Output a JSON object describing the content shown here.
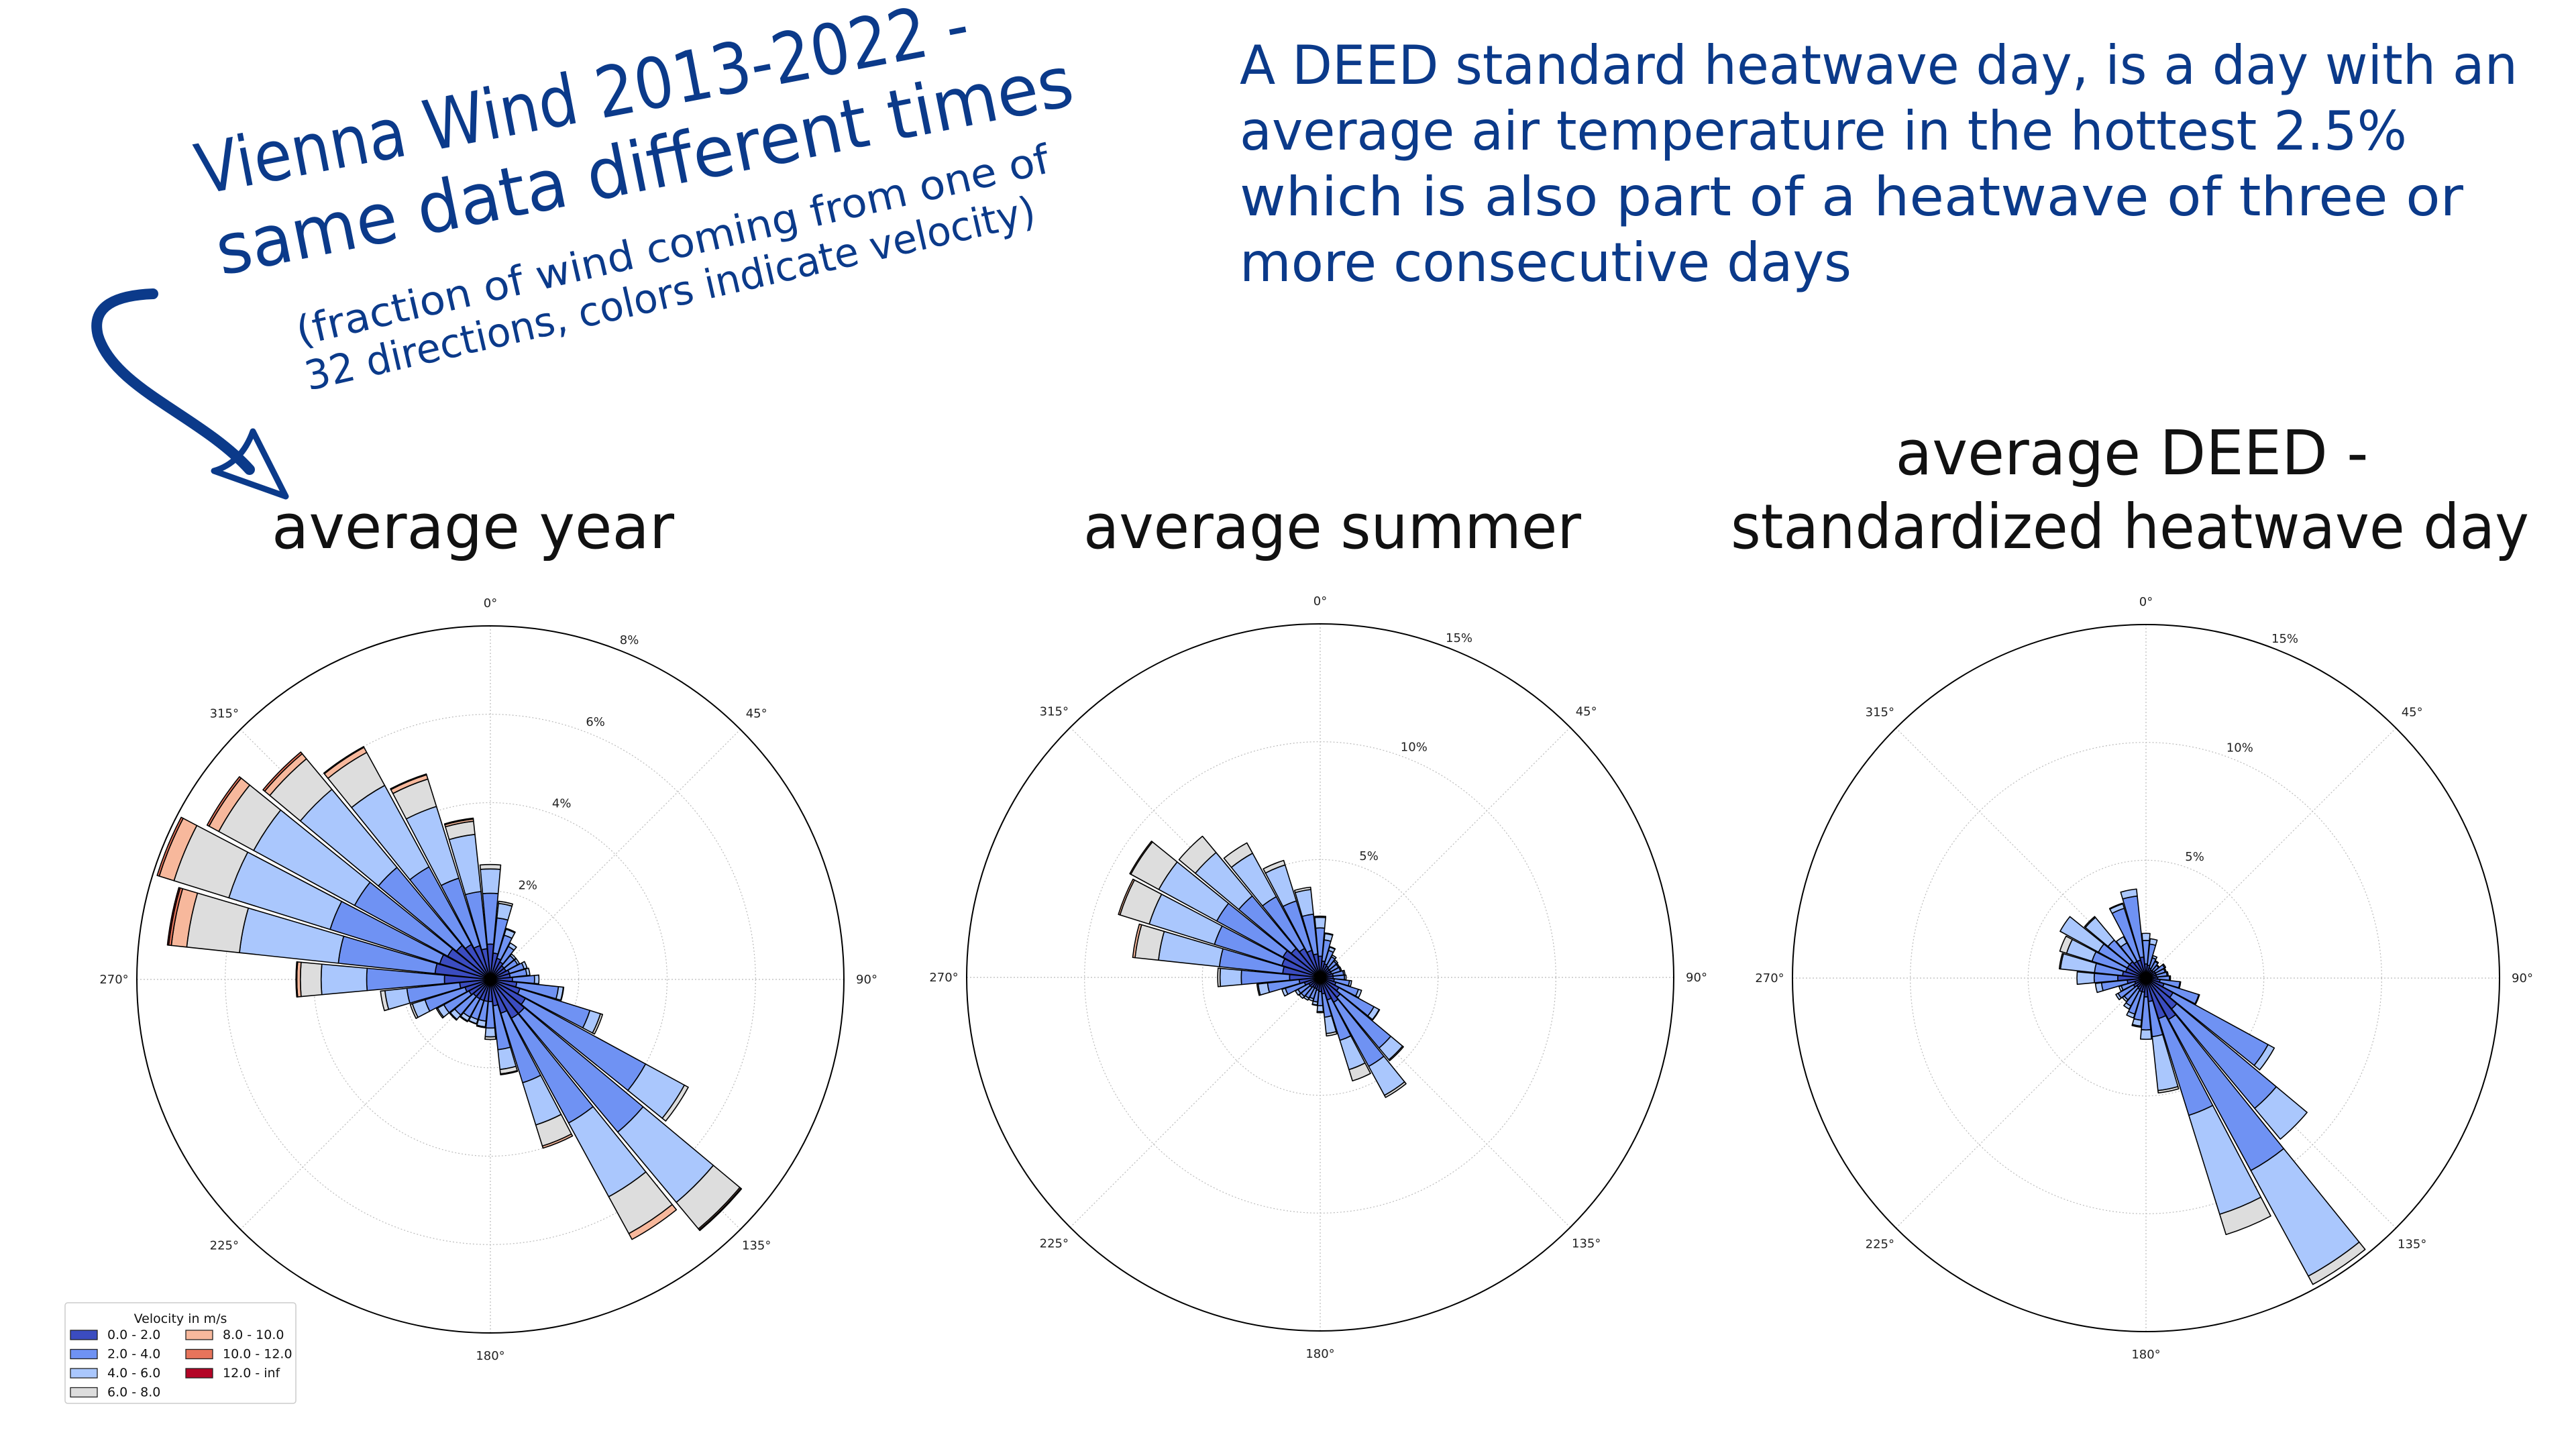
{
  "headline": {
    "lines": [
      "Vienna Wind 2013-2022 -",
      "same data different times"
    ],
    "sub_lines": [
      "(fraction of wind coming from one of",
      "32 directions, colors indicate velocity)"
    ]
  },
  "definition": {
    "lines": [
      "A DEED standard heatwave day, is a day with an",
      "average air temperature in the hottest 2.5%",
      "which is also part of a heatwave of three or",
      "more consecutive days"
    ]
  },
  "colors": {
    "text_blue": "#0b3a8a",
    "bins": [
      "#3b4cc0",
      "#6f92f3",
      "#aac7fd",
      "#dddddd",
      "#f7b89c",
      "#e7745b",
      "#b40426"
    ]
  },
  "legend": {
    "title": "Velocity in m/s",
    "labels": [
      "0.0 - 2.0",
      "2.0 - 4.0",
      "4.0 - 6.0",
      "6.0 - 8.0",
      "8.0 - 10.0",
      "10.0 - 12.0",
      "12.0 - inf"
    ],
    "placement": "lower-left"
  },
  "chart_data": [
    {
      "type": "windrose",
      "title_lines": [
        "average year"
      ],
      "angle_labels": [
        "0°",
        "45°",
        "90°",
        "135°",
        "180°",
        "225°",
        "270°",
        "315°"
      ],
      "radial_ticks": [
        2,
        4,
        6,
        8
      ],
      "radial_labels": [
        "2%",
        "4%",
        "6%",
        "8%"
      ],
      "rmax": 8,
      "directions_deg": [
        0,
        11.25,
        22.5,
        33.75,
        45,
        56.25,
        67.5,
        78.75,
        90,
        101.25,
        112.5,
        123.75,
        135,
        146.25,
        157.5,
        168.75,
        180,
        191.25,
        202.5,
        213.75,
        225,
        236.25,
        247.5,
        258.75,
        270,
        281.25,
        292.5,
        303.75,
        315,
        326.25,
        337.5,
        348.75
      ],
      "values_pct": [
        [
          0.8,
          1.15,
          0.55,
          0.1,
          0,
          0,
          0
        ],
        [
          0.6,
          0.8,
          0.33,
          0.05,
          0,
          0,
          0
        ],
        [
          0.5,
          0.55,
          0.14,
          0.02,
          0,
          0,
          0
        ],
        [
          0.45,
          0.4,
          0.09,
          0,
          0,
          0,
          0
        ],
        [
          0.4,
          0.3,
          0.05,
          0,
          0,
          0,
          0
        ],
        [
          0.4,
          0.3,
          0.05,
          0,
          0,
          0,
          0
        ],
        [
          0.45,
          0.35,
          0.07,
          0,
          0,
          0,
          0
        ],
        [
          0.45,
          0.38,
          0.07,
          0,
          0,
          0,
          0
        ],
        [
          0.5,
          0.5,
          0.1,
          0,
          0,
          0,
          0
        ],
        [
          0.6,
          0.95,
          0.11,
          0.01,
          0,
          0,
          0
        ],
        [
          0.7,
          1.66,
          0.25,
          0.05,
          0,
          0,
          0
        ],
        [
          0.9,
          3.1,
          1.0,
          0.1,
          0,
          0,
          0
        ],
        [
          1.0,
          3.5,
          2.07,
          0.78,
          0.03,
          0.02,
          0
        ],
        [
          1.0,
          2.7,
          1.9,
          0.95,
          0.15,
          0,
          0
        ],
        [
          0.8,
          1.65,
          1.0,
          0.5,
          0.05,
          0,
          0
        ],
        [
          0.6,
          1.0,
          0.45,
          0.1,
          0.02,
          0,
          0
        ],
        [
          0.5,
          0.6,
          0.2,
          0.06,
          0,
          0,
          0
        ],
        [
          0.5,
          0.45,
          0.13,
          0.02,
          0,
          0,
          0
        ],
        [
          0.5,
          0.45,
          0.1,
          0.01,
          0,
          0,
          0
        ],
        [
          0.5,
          0.47,
          0.1,
          0.02,
          0,
          0,
          0
        ],
        [
          0.5,
          0.55,
          0.13,
          0.02,
          0,
          0,
          0
        ],
        [
          0.55,
          0.65,
          0.16,
          0.03,
          0,
          0,
          0
        ],
        [
          0.6,
          0.95,
          0.3,
          0.05,
          0,
          0,
          0
        ],
        [
          0.7,
          1.2,
          0.5,
          0.1,
          0,
          0,
          0
        ],
        [
          1.04,
          1.76,
          1.03,
          0.47,
          0.08,
          0.02,
          0
        ],
        [
          1.26,
          2.2,
          2.25,
          1.2,
          0.35,
          0.06,
          0.03
        ],
        [
          1.2,
          2.6,
          2.4,
          1.3,
          0.35,
          0.05,
          0
        ],
        [
          1.1,
          2.4,
          2.6,
          0.9,
          0.25,
          0.05,
          0
        ],
        [
          1.0,
          2.3,
          2.3,
          0.9,
          0.15,
          0.05,
          0
        ],
        [
          0.9,
          2.0,
          2.1,
          0.85,
          0.13,
          0.02,
          0
        ],
        [
          0.8,
          1.6,
          1.7,
          0.65,
          0.1,
          0.02,
          0
        ],
        [
          0.7,
          1.3,
          1.3,
          0.3,
          0.05,
          0.02,
          0
        ]
      ]
    },
    {
      "type": "windrose",
      "title_lines": [
        "average summer"
      ],
      "angle_labels": [
        "0°",
        "45°",
        "90°",
        "135°",
        "180°",
        "225°",
        "270°",
        "315°"
      ],
      "radial_ticks": [
        5,
        10,
        15
      ],
      "radial_labels": [
        "5%",
        "10%",
        "15%"
      ],
      "rmax": 15,
      "directions_deg": [
        0,
        11.25,
        22.5,
        33.75,
        45,
        56.25,
        67.5,
        78.75,
        90,
        101.25,
        112.5,
        123.75,
        135,
        146.25,
        157.5,
        168.75,
        180,
        191.25,
        202.5,
        213.75,
        225,
        236.25,
        247.5,
        258.75,
        270,
        281.25,
        292.5,
        303.75,
        315,
        326.25,
        337.5,
        348.75
      ],
      "values_pct": [
        [
          0.9,
          1.2,
          0.45,
          0.05,
          0,
          0,
          0
        ],
        [
          0.7,
          0.9,
          0.27,
          0.03,
          0,
          0,
          0
        ],
        [
          0.6,
          0.6,
          0.15,
          0.02,
          0,
          0,
          0
        ],
        [
          0.55,
          0.45,
          0.08,
          0,
          0,
          0,
          0
        ],
        [
          0.5,
          0.4,
          0.07,
          0,
          0,
          0,
          0
        ],
        [
          0.5,
          0.38,
          0.05,
          0,
          0,
          0,
          0
        ],
        [
          0.5,
          0.4,
          0.05,
          0,
          0,
          0,
          0
        ],
        [
          0.55,
          0.45,
          0.06,
          0,
          0,
          0,
          0
        ],
        [
          0.55,
          0.48,
          0.07,
          0,
          0,
          0,
          0
        ],
        [
          0.6,
          0.65,
          0.09,
          0,
          0,
          0,
          0
        ],
        [
          0.7,
          1.0,
          0.14,
          0,
          0,
          0,
          0
        ],
        [
          0.9,
          1.7,
          0.25,
          0.02,
          0,
          0,
          0
        ],
        [
          1.1,
          2.8,
          0.65,
          0.05,
          0,
          0,
          0
        ],
        [
          1.2,
          3.1,
          1.4,
          0.1,
          0,
          0,
          0
        ],
        [
          1.0,
          1.8,
          1.3,
          0.5,
          0,
          0,
          0
        ],
        [
          0.7,
          1.0,
          0.7,
          0.1,
          0,
          0,
          0
        ],
        [
          0.6,
          0.6,
          0.25,
          0.05,
          0,
          0,
          0
        ],
        [
          0.55,
          0.5,
          0.13,
          0.02,
          0,
          0,
          0
        ],
        [
          0.5,
          0.45,
          0.1,
          0,
          0,
          0,
          0
        ],
        [
          0.5,
          0.5,
          0.1,
          0,
          0,
          0,
          0
        ],
        [
          0.55,
          0.5,
          0.11,
          0,
          0,
          0,
          0
        ],
        [
          0.55,
          0.52,
          0.13,
          0,
          0,
          0,
          0
        ],
        [
          0.7,
          0.85,
          0.15,
          0,
          0,
          0,
          0
        ],
        [
          0.9,
          1.35,
          0.4,
          0.05,
          0,
          0,
          0
        ],
        [
          1.3,
          2.05,
          0.9,
          0.1,
          0,
          0,
          0
        ],
        [
          1.6,
          2.7,
          2.6,
          1.0,
          0.1,
          0,
          0
        ],
        [
          1.7,
          3.0,
          2.9,
          1.3,
          0.07,
          0,
          0
        ],
        [
          1.8,
          3.2,
          2.8,
          1.35,
          0.05,
          0,
          0
        ],
        [
          1.6,
          2.9,
          2.4,
          0.9,
          0,
          0,
          0
        ],
        [
          1.4,
          2.5,
          2.1,
          0.5,
          0,
          0,
          0
        ],
        [
          1.2,
          2.2,
          1.6,
          0.2,
          0,
          0,
          0
        ],
        [
          1.0,
          1.7,
          1.05,
          0.1,
          0,
          0,
          0
        ]
      ]
    },
    {
      "type": "windrose",
      "title_lines": [
        "average DEED -",
        "standardized heatwave day"
      ],
      "angle_labels": [
        "0°",
        "45°",
        "90°",
        "135°",
        "180°",
        "225°",
        "270°",
        "315°"
      ],
      "radial_ticks": [
        5,
        10,
        15
      ],
      "radial_labels": [
        "5%",
        "10%",
        "15%"
      ],
      "rmax": 15,
      "directions_deg": [
        0,
        11.25,
        22.5,
        33.75,
        45,
        56.25,
        67.5,
        78.75,
        90,
        101.25,
        112.5,
        123.75,
        135,
        146.25,
        157.5,
        168.75,
        180,
        191.25,
        202.5,
        213.75,
        225,
        236.25,
        247.5,
        258.75,
        270,
        281.25,
        292.5,
        303.75,
        315,
        326.25,
        337.5,
        348.75
      ],
      "values_pct": [
        [
          0.6,
          1.0,
          0.3,
          0,
          0,
          0,
          0
        ],
        [
          0.55,
          0.9,
          0.23,
          0,
          0,
          0,
          0
        ],
        [
          0.45,
          0.45,
          0.1,
          0,
          0,
          0,
          0
        ],
        [
          0.4,
          0.4,
          0.04,
          0,
          0,
          0,
          0
        ],
        [
          0.4,
          0.3,
          0.03,
          0,
          0,
          0,
          0
        ],
        [
          0.45,
          0.45,
          0.05,
          0,
          0,
          0,
          0
        ],
        [
          0.45,
          0.4,
          0.05,
          0,
          0,
          0,
          0
        ],
        [
          0.45,
          0.45,
          0.05,
          0,
          0,
          0,
          0
        ],
        [
          0.5,
          0.5,
          0.04,
          0,
          0,
          0,
          0
        ],
        [
          0.6,
          0.85,
          0.03,
          0,
          0,
          0,
          0
        ],
        [
          0.8,
          1.55,
          0.03,
          0,
          0,
          0,
          0
        ],
        [
          1.3,
          4.6,
          0.3,
          0,
          0,
          0,
          0
        ],
        [
          1.7,
          5.5,
          1.7,
          0,
          0,
          0,
          0
        ],
        [
          2.0,
          7.3,
          5.1,
          0.4,
          0,
          0,
          0
        ],
        [
          1.8,
          4.3,
          4.4,
          0.9,
          0,
          0,
          0
        ],
        [
          1.0,
          1.5,
          2.3,
          0.1,
          0,
          0,
          0
        ],
        [
          0.8,
          1.4,
          0.4,
          0,
          0,
          0,
          0
        ],
        [
          0.6,
          1.2,
          0.25,
          0.05,
          0,
          0,
          0
        ],
        [
          0.6,
          1.0,
          0.17,
          0,
          0,
          0,
          0
        ],
        [
          0.55,
          0.8,
          0.15,
          0,
          0,
          0,
          0
        ],
        [
          0.5,
          0.7,
          0.1,
          0,
          0,
          0,
          0
        ],
        [
          0.6,
          0.75,
          0.11,
          0,
          0,
          0,
          0
        ],
        [
          0.5,
          0.6,
          0.1,
          0,
          0,
          0,
          0
        ],
        [
          0.8,
          1.1,
          0.26,
          0,
          0,
          0,
          0
        ],
        [
          1.2,
          1.0,
          0.73,
          0,
          0,
          0,
          0
        ],
        [
          1.0,
          1.2,
          1.45,
          0.05,
          0,
          0,
          0
        ],
        [
          0.9,
          1.5,
          1.13,
          0.3,
          0,
          0,
          0
        ],
        [
          0.9,
          1.4,
          1.85,
          0,
          0,
          0,
          0
        ],
        [
          0.9,
          1.2,
          1.25,
          0.05,
          0,
          0,
          0
        ],
        [
          0.8,
          0.9,
          0.3,
          0,
          0,
          0,
          0
        ],
        [
          0.8,
          2.3,
          0.2,
          0.03,
          0,
          0,
          0
        ],
        [
          0.9,
          2.6,
          0.3,
          0,
          0,
          0,
          0
        ]
      ]
    }
  ]
}
